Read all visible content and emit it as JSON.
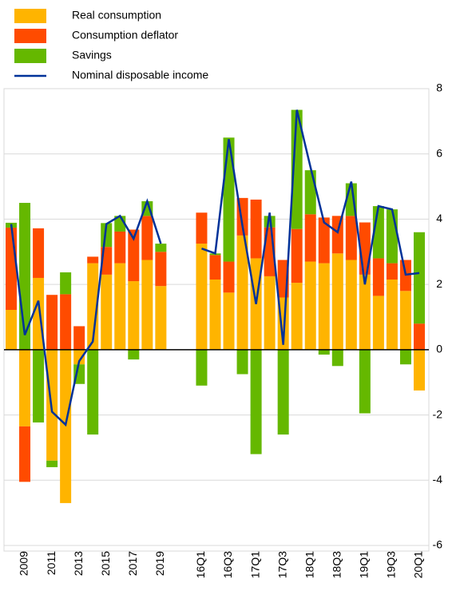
{
  "chart_data": {
    "type": "stacked_bar_line",
    "categories": [
      null,
      "2009",
      null,
      "2011",
      null,
      "2013",
      null,
      "2015",
      null,
      "2017",
      null,
      "2019",
      null,
      null,
      "16Q1",
      null,
      "16Q3",
      null,
      "17Q1",
      null,
      "17Q3",
      null,
      "18Q1",
      null,
      "18Q3",
      null,
      "19Q1",
      null,
      "19Q3",
      null,
      "20Q1"
    ],
    "series": [
      {
        "name": "Real consumption",
        "color": "#ffb400",
        "values": [
          1.22,
          -2.35,
          2.2,
          -3.4,
          -4.7,
          -0.45,
          2.65,
          2.3,
          2.65,
          2.1,
          2.75,
          1.95,
          null,
          null,
          3.25,
          2.15,
          1.75,
          3.5,
          2.8,
          2.25,
          1.6,
          2.05,
          2.7,
          2.65,
          2.95,
          2.75,
          2.3,
          1.65,
          2.15,
          1.8,
          -1.25
        ]
      },
      {
        "name": "Consumption deflator",
        "color": "#ff4b00",
        "values": [
          2.52,
          -1.7,
          1.52,
          1.68,
          1.7,
          0.72,
          0.2,
          0.85,
          0.97,
          1.58,
          1.35,
          1.05,
          null,
          null,
          0.95,
          0.75,
          0.95,
          1.15,
          1.8,
          1.5,
          1.15,
          1.65,
          1.45,
          1.4,
          1.15,
          1.35,
          1.6,
          1.15,
          0.5,
          0.95,
          0.8
        ]
      },
      {
        "name": "Savings",
        "color": "#65b800",
        "values": [
          0.15,
          4.5,
          -2.23,
          -0.2,
          0.67,
          -0.6,
          -2.6,
          0.73,
          0.48,
          -0.3,
          0.45,
          0.25,
          null,
          null,
          -1.1,
          0.05,
          3.8,
          -0.75,
          -3.2,
          0.35,
          -2.6,
          3.65,
          1.35,
          -0.15,
          -0.5,
          1.0,
          -1.95,
          1.6,
          1.65,
          -0.45,
          2.8
        ]
      },
      {
        "name": "Nominal disposable income",
        "color": "#003299",
        "kind": "line",
        "values": [
          3.85,
          0.45,
          1.5,
          -1.9,
          -2.3,
          -0.35,
          0.25,
          3.85,
          4.1,
          3.4,
          4.55,
          3.25,
          null,
          null,
          3.1,
          2.95,
          6.45,
          3.8,
          1.4,
          4.2,
          0.15,
          7.35,
          5.6,
          3.9,
          3.6,
          5.15,
          2.0,
          4.4,
          4.3,
          2.3,
          2.35
        ]
      }
    ],
    "ylim": [
      -6,
      8
    ],
    "yticks": [
      -6,
      -4,
      -2,
      0,
      2,
      4,
      6,
      8
    ],
    "grid": true
  }
}
